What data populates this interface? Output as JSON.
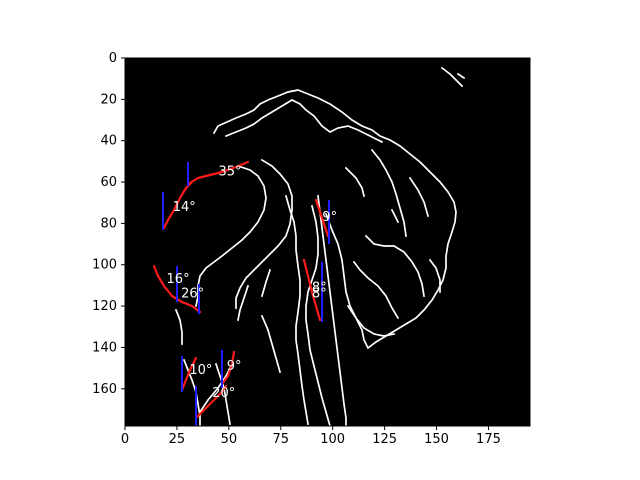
{
  "chart_data": {
    "type": "image",
    "xlim": [
      0,
      195
    ],
    "ylim": [
      178,
      0
    ],
    "y_axis": "inverted",
    "x_ticks": [
      "0",
      "25",
      "50",
      "75",
      "100",
      "125",
      "150",
      "175"
    ],
    "y_ticks": [
      "0",
      "20",
      "40",
      "60",
      "80",
      "100",
      "120",
      "140",
      "160"
    ],
    "background": "#000000",
    "edge_color": "#ffffff",
    "fit_color": "#ff0000",
    "reference_color": "#0000ff",
    "angle_labels": [
      {
        "text": "35°",
        "x": 45,
        "y": 55
      },
      {
        "text": "14°",
        "x": 23,
        "y": 72
      },
      {
        "text": "9°",
        "x": 95,
        "y": 77
      },
      {
        "text": "16°",
        "x": 20,
        "y": 107
      },
      {
        "text": "26°",
        "x": 27,
        "y": 114
      },
      {
        "text": "8°",
        "x": 90,
        "y": 111
      },
      {
        "text": "8°",
        "x": 90,
        "y": 114
      },
      {
        "text": "10°",
        "x": 31,
        "y": 151
      },
      {
        "text": "9°",
        "x": 49,
        "y": 149
      },
      {
        "text": "20°",
        "x": 42,
        "y": 162
      }
    ]
  }
}
